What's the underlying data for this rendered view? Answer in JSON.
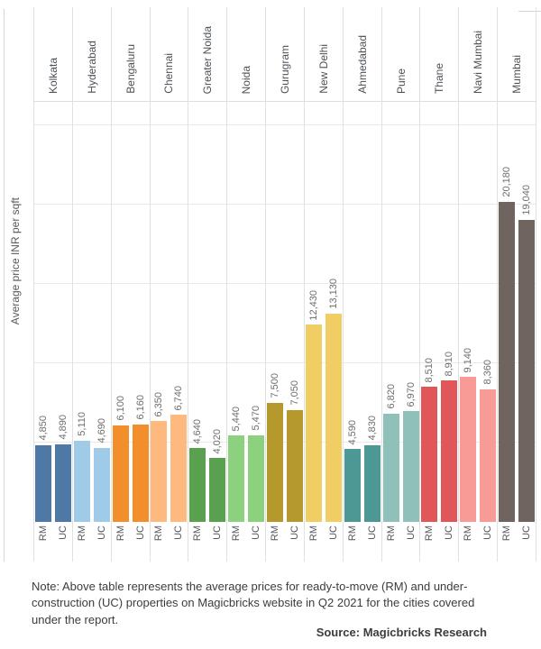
{
  "chart_data": {
    "type": "bar",
    "ylabel": "Average price INR per sqft",
    "ylim": [
      0,
      26500
    ],
    "grid": true,
    "gridline_values": [
      5000,
      10000,
      15000,
      20000,
      25000
    ],
    "legend_position": "none",
    "categories": [
      "Kolkata",
      "Hyderabad",
      "Bengaluru",
      "Chennai",
      "Greater Noida",
      "Noida",
      "Gurugram",
      "New Delhi",
      "Ahmedabad",
      "Pune",
      "Thane",
      "Navi Mumbai",
      "Mumbai"
    ],
    "series": [
      {
        "name": "RM",
        "values": [
          4850,
          5110,
          6100,
          6350,
          4640,
          5440,
          7500,
          12430,
          4590,
          6820,
          8510,
          9140,
          20180
        ]
      },
      {
        "name": "UC",
        "values": [
          4890,
          4690,
          6160,
          6740,
          4020,
          5470,
          7050,
          13130,
          4830,
          6970,
          8910,
          8360,
          19040
        ]
      }
    ],
    "category_colors": [
      "#4e79a7",
      "#a0cbe8",
      "#f28e2b",
      "#fdb97e",
      "#59a14f",
      "#8cd17d",
      "#b6992d",
      "#f1ce63",
      "#4d9894",
      "#8fc0ba",
      "#e15759",
      "#f89a95",
      "#6f6460"
    ]
  },
  "note": {
    "text": "Note: Above table represents the average prices for ready-to-move (RM) and under-construction (UC) properties on Magicbricks website in Q2 2021 for the cities covered under the report."
  },
  "source": {
    "text": "Source: Magicbricks Research"
  }
}
